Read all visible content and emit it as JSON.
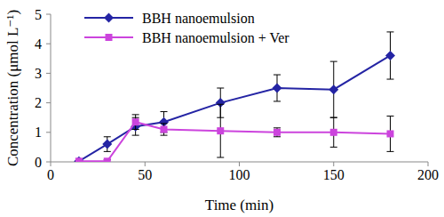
{
  "chart_data": {
    "type": "line",
    "x_label": "Time (min)",
    "y_label": "Concentration (μmol L⁻¹)",
    "x": [
      15,
      30,
      45,
      60,
      90,
      120,
      150,
      180
    ],
    "series": [
      {
        "name": "BBH nanoemulsion",
        "color": "#2424A4",
        "marker": "diamond",
        "line_style": "solid",
        "values": [
          0.02,
          0.6,
          1.2,
          1.35,
          2.0,
          2.5,
          2.45,
          3.6
        ],
        "error": [
          0.02,
          0.25,
          0.3,
          0.35,
          0.5,
          0.45,
          0.95,
          0.8
        ]
      },
      {
        "name": "BBH nanoemulsion + Ver",
        "color": "#CC44DD",
        "marker": "square",
        "line_style": "solid",
        "values": [
          0.02,
          0.02,
          1.35,
          1.1,
          1.05,
          1.0,
          1.0,
          0.95
        ],
        "error": [
          0.0,
          0.05,
          0.25,
          0.2,
          0.9,
          0.15,
          0.5,
          0.6
        ]
      }
    ],
    "xlim": [
      0,
      200
    ],
    "xticks": [
      0,
      50,
      100,
      150,
      200
    ],
    "ylim": [
      0,
      5
    ],
    "yticks": [
      0,
      1,
      2,
      3,
      4,
      5
    ],
    "grid": false,
    "legend": "upper left"
  }
}
